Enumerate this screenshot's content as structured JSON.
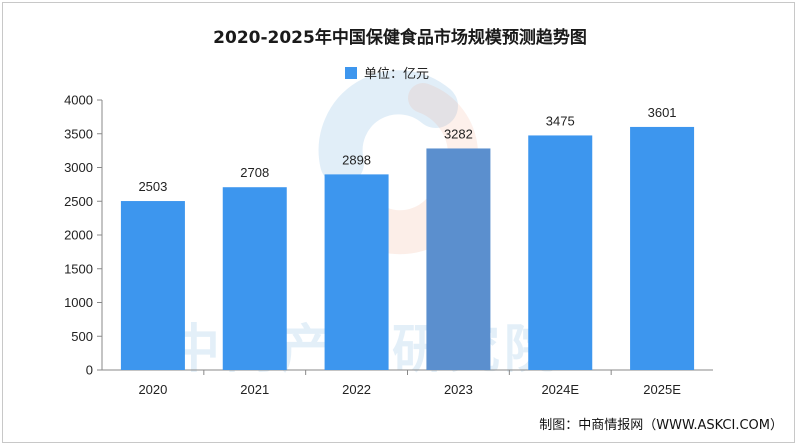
{
  "chart_data": {
    "type": "bar",
    "title": "2020-2025年中国保健食品市场规模预测趋势图",
    "legend": {
      "label": "单位：亿元",
      "position": "top-center"
    },
    "categories": [
      "2020",
      "2021",
      "2022",
      "2023",
      "2024E",
      "2025E"
    ],
    "series": [
      {
        "name": "单位：亿元",
        "values": [
          2503,
          2708,
          2898,
          3282,
          3475,
          3601
        ]
      }
    ],
    "data_labels": [
      "2503",
      "2708",
      "2898",
      "3282",
      "3475",
      "3601"
    ],
    "ylim": [
      0,
      4000
    ],
    "yticks": [
      0,
      500,
      1000,
      1500,
      2000,
      2500,
      3000,
      3500,
      4000
    ],
    "grid": false,
    "bar_color": "#3d96ee",
    "highlight_bar_color": "#5b8fce"
  },
  "watermark": "中商产业研究院",
  "source": "制图：中商情报网（WWW.ASKCI.COM）"
}
